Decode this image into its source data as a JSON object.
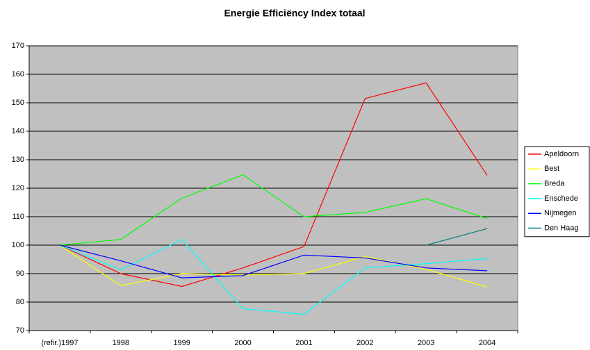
{
  "chart_data": {
    "type": "line",
    "title": "Energie Efficiëncy Index totaal",
    "categories": [
      "(refir.)1997",
      "1998",
      "1999",
      "2000",
      "2001",
      "2002",
      "2003",
      "2004"
    ],
    "series": [
      {
        "name": "Apeldoorn",
        "color": "#ff0000",
        "values": [
          100,
          90,
          85.5,
          92,
          99.5,
          151.5,
          157,
          124.5
        ]
      },
      {
        "name": "Best",
        "color": "#ffff00",
        "values": [
          100,
          85.8,
          90,
          89.5,
          90,
          96,
          91.5,
          85.3
        ]
      },
      {
        "name": "Breda",
        "color": "#00ff00",
        "values": [
          100,
          102,
          116.5,
          124.7,
          110,
          111.5,
          116.3,
          109.3
        ]
      },
      {
        "name": "Enschede",
        "color": "#00ffff",
        "values": [
          100,
          91.3,
          102,
          77.7,
          75.7,
          92,
          93.5,
          95.3
        ]
      },
      {
        "name": "Nijmegen",
        "color": "#0000ff",
        "values": [
          100,
          94.5,
          88.5,
          89.3,
          96.5,
          95.5,
          92,
          91
        ]
      },
      {
        "name": "Den Haag",
        "color": "#008080",
        "values": [
          null,
          null,
          null,
          null,
          null,
          null,
          100,
          105.8
        ]
      }
    ],
    "ylim": [
      70,
      170
    ],
    "yticks": [
      70,
      80,
      90,
      100,
      110,
      120,
      130,
      140,
      150,
      160,
      170
    ],
    "grid": true,
    "legend": "right"
  }
}
